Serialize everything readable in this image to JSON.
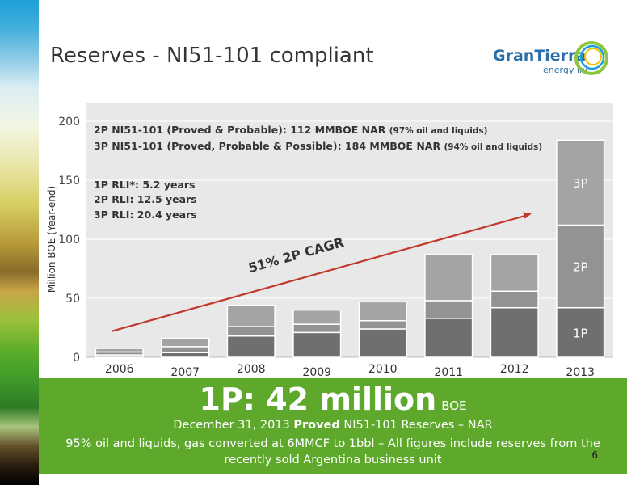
{
  "slide": {
    "title": "Reserves - NI51-101 compliant",
    "page_number": "6"
  },
  "logo": {
    "name": "GranTierra",
    "subtitle": "energy inc."
  },
  "annotations": {
    "reserves_2p": {
      "main": "2P NI51-101 (Proved & Probable): 112 MMBOE NAR",
      "note": "(97% oil and liquids)"
    },
    "reserves_3p": {
      "main": "3P NI51-101 (Proved, Probable & Possible): 184 MMBOE NAR",
      "note": "(94% oil and liquids)"
    },
    "rli": [
      "1P RLI*: 5.2 years",
      "2P RLI: 12.5 years",
      "3P RLI: 20.4 years"
    ],
    "cagr": "51% 2P CAGR"
  },
  "banner": {
    "big": "1P: 42 million",
    "unit": "BOE",
    "line1_pre": "December 31, 2013 ",
    "line1_bold": "Proved",
    "line1_post": " NI51-101 Reserves – NAR",
    "line2": "95% oil and liquids, gas converted at 6MMCF to 1bbl – All figures include reserves from the recently sold Argentina business unit"
  },
  "colors": {
    "banner_green": "#5ea92c",
    "plot_bg": "#e8e8e8",
    "bar_1p": "#6f6f6f",
    "bar_2p": "#939393",
    "bar_3p": "#a4a4a4",
    "arrow": "#c0392b",
    "logo_blue": "#2a6fa8"
  },
  "chart_data": {
    "type": "bar",
    "stacked": true,
    "categories": [
      "2006",
      "2007",
      "2008",
      "2009",
      "2010",
      "2011",
      "2012",
      "2013"
    ],
    "ylabel": "Million BOE (Year-end)",
    "ylim": [
      0,
      200
    ],
    "yticks": [
      0,
      50,
      100,
      150,
      200
    ],
    "grid": true,
    "series": [
      {
        "name": "1P",
        "values": [
          2,
          4,
          18,
          21,
          24,
          33,
          42,
          42
        ]
      },
      {
        "name": "2P",
        "values": [
          2.5,
          5,
          8,
          7,
          7,
          15,
          14,
          70
        ]
      },
      {
        "name": "3P",
        "values": [
          3,
          7,
          18,
          12,
          16,
          39,
          31,
          72
        ]
      }
    ],
    "trend": {
      "label": "51% 2P CAGR",
      "from": [
        "2006",
        22
      ],
      "to": [
        "2013",
        122
      ]
    }
  }
}
